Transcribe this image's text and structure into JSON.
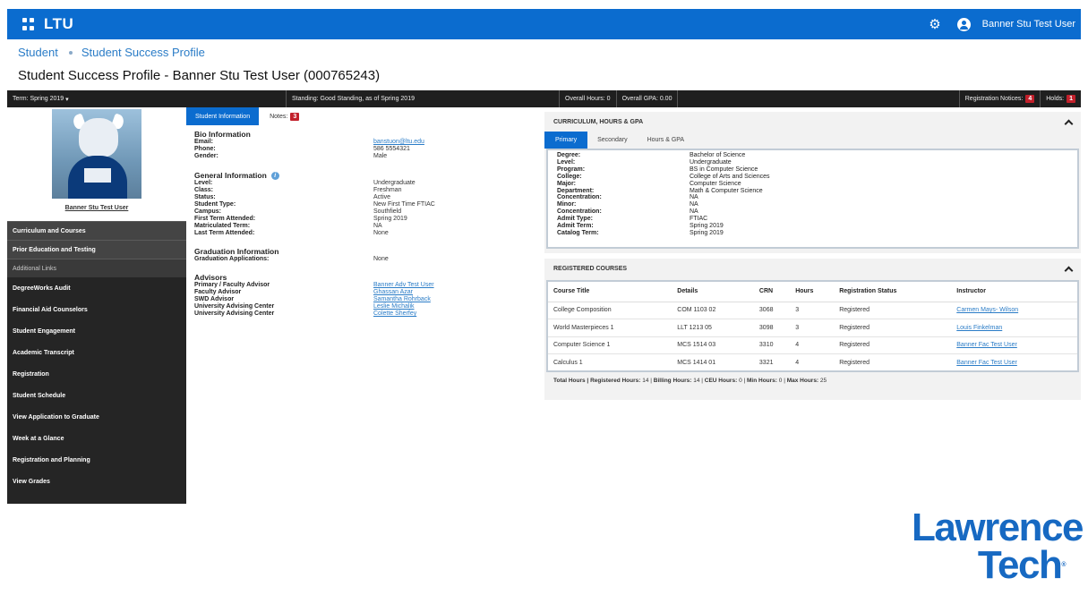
{
  "header": {
    "logo": "LTU",
    "user_name": "Banner Stu Test User"
  },
  "breadcrumb": [
    "Student",
    "Student Success Profile"
  ],
  "page_title": "Student Success Profile - Banner Stu Test User (000765243)",
  "status_bar": {
    "term": "Term: Spring 2019",
    "standing": "Standing: Good Standing, as of Spring 2019",
    "overall_hours": "Overall Hours: 0",
    "overall_gpa": "Overall GPA: 0.00",
    "registration_notices_label": "Registration Notices:",
    "registration_notices_count": "4",
    "holds_label": "Holds:",
    "holds_count": "1"
  },
  "sidebar": {
    "student_name": "Banner Stu Test User",
    "sections": [
      "Curriculum and Courses",
      "Prior Education and Testing",
      "Additional Links"
    ],
    "links": [
      "DegreeWorks Audit",
      "Financial Aid Counselors",
      "Student Engagement",
      "Academic Transcript",
      "Registration",
      "Student Schedule",
      "View Application to Graduate",
      "Week at a Glance",
      "Registration and Planning",
      "View Grades"
    ]
  },
  "info_tabs": {
    "student_information": "Student Information",
    "notes": "Notes:",
    "notes_count": "3"
  },
  "bio": {
    "title": "Bio Information",
    "rows": [
      {
        "k": "Email:",
        "v": "banstuon@ltu.edu"
      },
      {
        "k": "Phone:",
        "v": "586 5554321"
      },
      {
        "k": "Gender:",
        "v": "Male"
      }
    ]
  },
  "general": {
    "title": "General Information",
    "rows": [
      {
        "k": "Level:",
        "v": "Undergraduate"
      },
      {
        "k": "Class:",
        "v": "Freshman"
      },
      {
        "k": "Status:",
        "v": "Active"
      },
      {
        "k": "Student Type:",
        "v": "New First Time FTIAC"
      },
      {
        "k": "Campus:",
        "v": "Southfield"
      },
      {
        "k": "First Term Attended:",
        "v": "Spring 2019"
      },
      {
        "k": "Matriculated Term:",
        "v": "NA"
      },
      {
        "k": "Last Term Attended:",
        "v": "None"
      }
    ]
  },
  "graduation": {
    "title": "Graduation Information",
    "rows": [
      {
        "k": "Graduation Applications:",
        "v": "None"
      }
    ]
  },
  "advisors": {
    "title": "Advisors",
    "rows": [
      {
        "k": "Primary / Faculty Advisor",
        "v": "Banner Adv Test User"
      },
      {
        "k": "Faculty Advisor",
        "v": "Ghassan Azar"
      },
      {
        "k": "SWD Advisor",
        "v": "Samantha Rohrback"
      },
      {
        "k": "University Advising Center",
        "v": "Leslie Michalik"
      },
      {
        "k": "University Advising Center",
        "v": "Colette Sherfey"
      }
    ]
  },
  "curriculum": {
    "title": "CURRICULUM, HOURS & GPA",
    "tabs": [
      "Primary",
      "Secondary",
      "Hours & GPA"
    ],
    "rows": [
      {
        "k": "Degree:",
        "v": "Bachelor of Science"
      },
      {
        "k": "Level:",
        "v": "Undergraduate"
      },
      {
        "k": "Program:",
        "v": "BS in Computer Science"
      },
      {
        "k": "College:",
        "v": "College of Arts and Sciences"
      },
      {
        "k": "Major:",
        "v": "Computer Science"
      },
      {
        "k": "Department:",
        "v": "Math & Computer Science"
      },
      {
        "k": "Concentration:",
        "v": "NA"
      },
      {
        "k": "Minor:",
        "v": "NA"
      },
      {
        "k": "Concentration:",
        "v": "NA"
      },
      {
        "k": "Admit Type:",
        "v": "FTIAC"
      },
      {
        "k": "Admit Term:",
        "v": "Spring 2019"
      },
      {
        "k": "Catalog Term:",
        "v": "Spring 2019"
      }
    ]
  },
  "registered": {
    "title": "REGISTERED COURSES",
    "columns": [
      "Course Title",
      "Details",
      "CRN",
      "Hours",
      "Registration Status",
      "Instructor"
    ],
    "rows": [
      [
        "College Composition",
        "COM 1103 02",
        "3068",
        "3",
        "Registered",
        "Carmen Mays- Wilson"
      ],
      [
        "World Masterpieces 1",
        "LLT 1213 05",
        "3098",
        "3",
        "Registered",
        "Louis Finkelman"
      ],
      [
        "Computer Science 1",
        "MCS 1514 03",
        "3310",
        "4",
        "Registered",
        "Banner Fac Test User"
      ],
      [
        "Calculus 1",
        "MCS 1414 01",
        "3321",
        "4",
        "Registered",
        "Banner Fac Test User"
      ]
    ],
    "totals": {
      "total_hours": "Total Hours |",
      "registered_label": "Registered Hours:",
      "registered": "14",
      "billing_label": "Billing Hours:",
      "billing": "14",
      "ceu_label": "CEU Hours:",
      "ceu": "0",
      "min_label": "Min Hours:",
      "min": "0",
      "max_label": "Max Hours:",
      "max": "25"
    }
  },
  "brand": {
    "line1": "Lawrence",
    "line2": "Tech",
    "mark": "®"
  }
}
